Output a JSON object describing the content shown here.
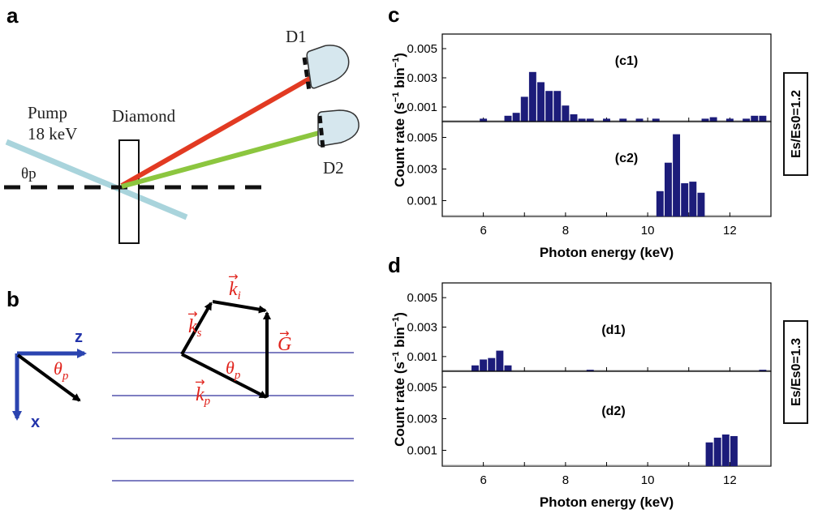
{
  "panels": {
    "a": "a",
    "b": "b",
    "c": "c",
    "d": "d"
  },
  "setup": {
    "pump_label": "Pump",
    "pump_energy": "18 keV",
    "crystal_label": "Diamond",
    "detector1": "D1",
    "detector2": "D2",
    "angle_label": "θp"
  },
  "kinematics": {
    "axis_z": "z",
    "axis_x": "x",
    "theta_sym": "θ",
    "theta_sub": "p",
    "k": "k",
    "ki_sub": "i",
    "ks_sub": "s",
    "kp_sub": "p",
    "G": "G",
    "arrow": "→"
  },
  "colors": {
    "signal_beam": "#e23a22",
    "idler_beam": "#8cc63f",
    "pump_beam": "#a9d4dc",
    "bars": "#1c1c7a",
    "vector_labels": "#e0231c",
    "axis_blue": "#2b44b0",
    "lattice": "#6b6bb8"
  },
  "icons": {
    "detector": "detector-icon"
  },
  "chart_data": [
    {
      "type": "bar",
      "label": "(c1)",
      "x_unit": "keV",
      "xlim": [
        5,
        13
      ],
      "ylim": [
        0,
        0.006
      ],
      "yticks": [
        "0.001",
        "0.003",
        "0.005"
      ],
      "bin_width": 0.2,
      "x": [
        6.0,
        6.6,
        6.8,
        7.0,
        7.2,
        7.4,
        7.6,
        7.8,
        8.0,
        8.2,
        8.4,
        8.6,
        9.0,
        9.4,
        9.8,
        10.2,
        11.4,
        11.6,
        12.0,
        12.4,
        12.6,
        12.8
      ],
      "values": [
        0.0002,
        0.0004,
        0.0006,
        0.0017,
        0.0034,
        0.0027,
        0.0021,
        0.0021,
        0.0011,
        0.0005,
        0.0002,
        0.0002,
        0.0002,
        0.0002,
        0.0002,
        0.0002,
        0.0002,
        0.0003,
        0.0002,
        0.0002,
        0.0004,
        0.0004
      ]
    },
    {
      "type": "bar",
      "label": "(c2)",
      "x_unit": "keV",
      "xlim": [
        5,
        13
      ],
      "ylim": [
        0,
        0.006
      ],
      "yticks": [
        "0.001",
        "0.003",
        "0.005"
      ],
      "xticks": [
        "6",
        "8",
        "10",
        "12"
      ],
      "xlabel": "Photon energy (keV)",
      "bin_width": 0.2,
      "x": [
        10.3,
        10.5,
        10.7,
        10.9,
        11.1,
        11.3
      ],
      "values": [
        0.0016,
        0.0034,
        0.0052,
        0.0021,
        0.0022,
        0.0015
      ]
    },
    {
      "type": "bar",
      "label": "(d1)",
      "x_unit": "keV",
      "xlim": [
        5,
        13
      ],
      "ylim": [
        0,
        0.006
      ],
      "yticks": [
        "0.001",
        "0.003",
        "0.005"
      ],
      "bin_width": 0.2,
      "x": [
        5.8,
        6.0,
        6.2,
        6.4,
        6.6,
        8.6,
        12.8
      ],
      "values": [
        0.0004,
        0.0008,
        0.0009,
        0.0014,
        0.0004,
        0.0001,
        0.0001
      ]
    },
    {
      "type": "bar",
      "label": "(d2)",
      "x_unit": "keV",
      "xlim": [
        5,
        13
      ],
      "ylim": [
        0,
        0.006
      ],
      "yticks": [
        "0.001",
        "0.003",
        "0.005"
      ],
      "xticks": [
        "6",
        "8",
        "10",
        "12"
      ],
      "xlabel": "Photon energy (keV)",
      "bin_width": 0.2,
      "x": [
        11.5,
        11.7,
        11.9,
        12.1
      ],
      "values": [
        0.0015,
        0.0018,
        0.002,
        0.0019
      ]
    }
  ],
  "shared_axes": {
    "ylabel_c": "Count rate (s",
    "ylabel_d": "Count rate (s",
    "ylabel_exp": "−1",
    "ylabel_bin": " bin",
    "ylabel_close": ")"
  },
  "ratios": {
    "c": "Es/Es0=1.2",
    "d": "Es/Es0=1.3"
  }
}
